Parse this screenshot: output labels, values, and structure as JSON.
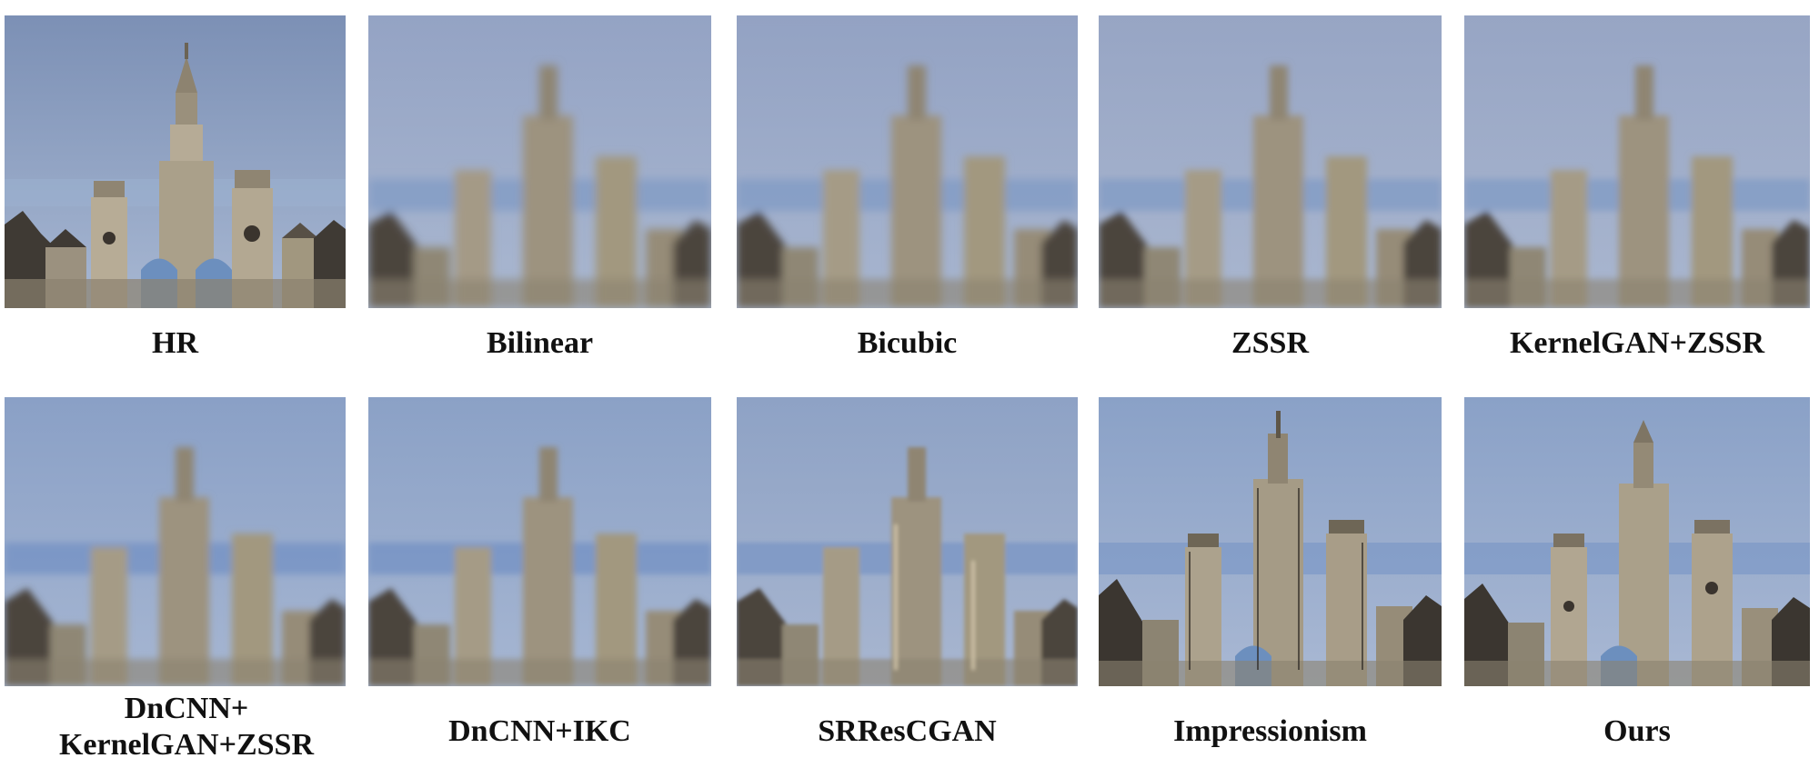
{
  "figure": {
    "panels": [
      {
        "caption": [
          "HR"
        ],
        "quality": "sharp"
      },
      {
        "caption": [
          "Bilinear"
        ],
        "quality": "blurry-noisy"
      },
      {
        "caption": [
          "Bicubic"
        ],
        "quality": "blurry-noisy"
      },
      {
        "caption": [
          "ZSSR"
        ],
        "quality": "blurry-noisy"
      },
      {
        "caption": [
          "KernelGAN+ZSSR"
        ],
        "quality": "blurry-noisy"
      },
      {
        "caption": [
          "DnCNN+",
          "KernelGAN+ZSSR"
        ],
        "quality": "blurry"
      },
      {
        "caption": [
          "DnCNN+IKC"
        ],
        "quality": "blurry"
      },
      {
        "caption": [
          "SRResCGAN"
        ],
        "quality": "artifacts"
      },
      {
        "caption": [
          "Impressionism"
        ],
        "quality": "sharp-artifacts"
      },
      {
        "caption": [
          "Ours"
        ],
        "quality": "sharp"
      }
    ],
    "colors": {
      "sky_top": "#7f93b8",
      "sky_bottom": "#9fb0cd",
      "stone": "#a59a86",
      "stone_dark": "#5e5648",
      "roof": "#3f3a34"
    }
  }
}
